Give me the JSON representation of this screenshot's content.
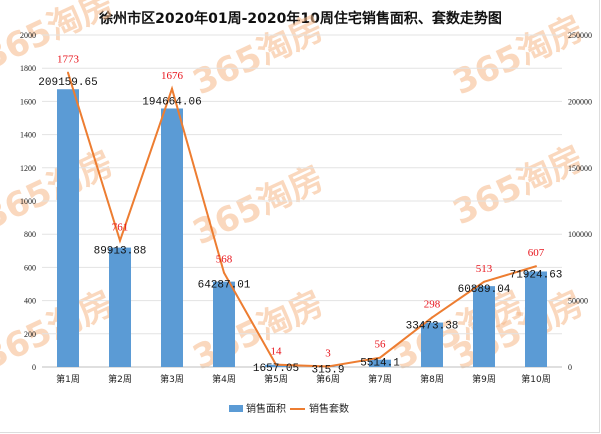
{
  "watermark": "365淘房",
  "chart_data": {
    "type": "bar+line",
    "title": "徐州市区2020年01周-2020年10周住宅销售面积、套数走势图",
    "categories": [
      "第1周",
      "第2周",
      "第3周",
      "第4周",
      "第5周",
      "第6周",
      "第7周",
      "第8周",
      "第9周",
      "第10周"
    ],
    "series": [
      {
        "name": "销售面积",
        "type": "bar",
        "axis": "right",
        "color": "#5b9bd5",
        "values": [
          209159.65,
          89913.88,
          194664.06,
          64287.01,
          1657.05,
          315.9,
          5514.1,
          33473.38,
          60889.04,
          71924.63
        ],
        "labels": [
          "209159.65",
          "89913.88",
          "194664.06",
          "64287.01",
          "1657.05",
          "315.9",
          "5514.1",
          "33473.38",
          "60889.04",
          "71924.63"
        ]
      },
      {
        "name": "销售套数",
        "type": "line",
        "axis": "left",
        "color": "#ed7d31",
        "values": [
          1773,
          761,
          1676,
          568,
          14,
          3,
          56,
          298,
          513,
          607
        ],
        "labels": [
          "1773",
          "761",
          "1676",
          "568",
          "14",
          "3",
          "56",
          "298",
          "513",
          "607"
        ]
      }
    ],
    "left_axis": {
      "ylim": [
        0,
        2000
      ],
      "ticks": [
        "0",
        "200",
        "400",
        "600",
        "800",
        "1000",
        "1200",
        "1400",
        "1600",
        "1800",
        "2000"
      ]
    },
    "right_axis": {
      "ylim": [
        0,
        250000
      ],
      "ticks": [
        "0",
        "50000",
        "100000",
        "150000",
        "200000",
        "250000"
      ]
    },
    "grid": true,
    "legend": "bottom"
  }
}
